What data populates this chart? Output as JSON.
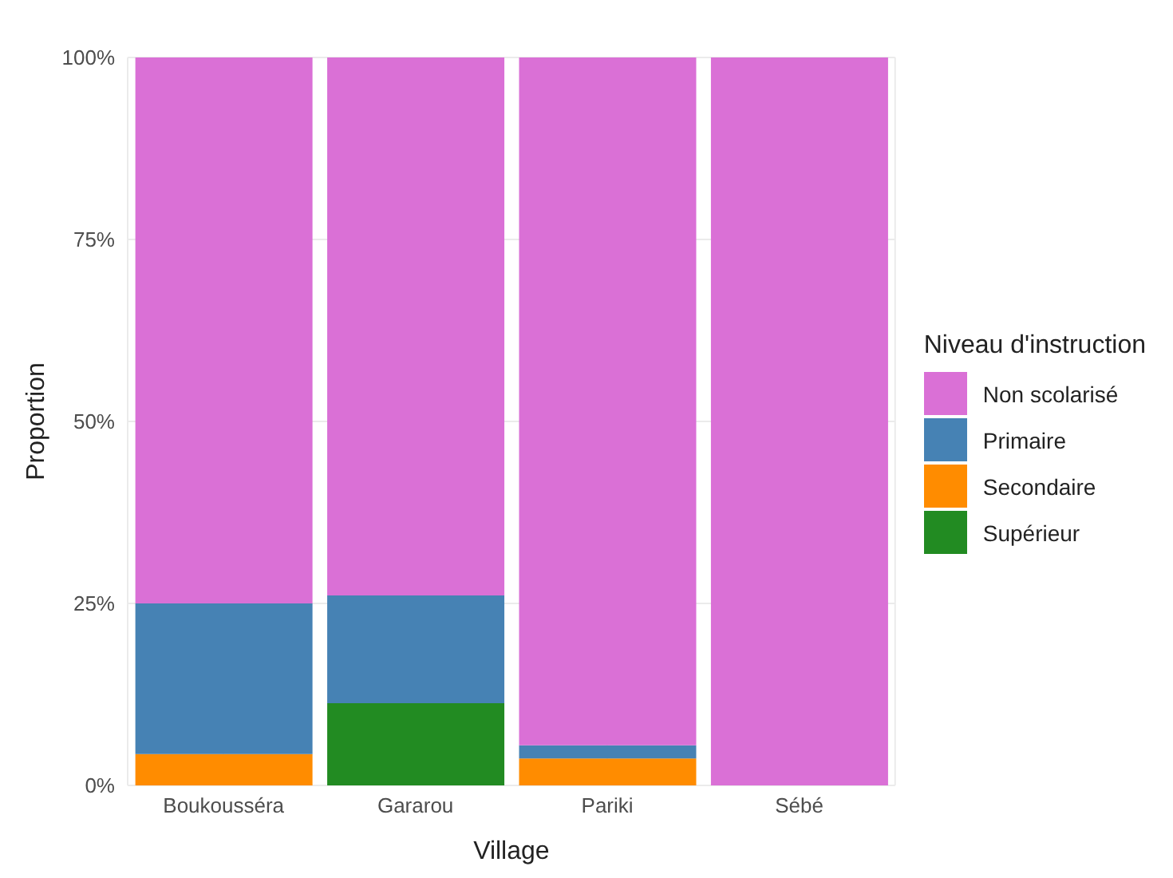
{
  "chart_data": {
    "type": "bar",
    "stacked": true,
    "xlabel": "Village",
    "ylabel": "Proportion",
    "legend_title": "Niveau d'instruction",
    "legend": "right",
    "grid": true,
    "categories": [
      "Boukousséra",
      "Gararou",
      "Pariki",
      "Sébé"
    ],
    "series": [
      {
        "name": "Supérieur",
        "color": "#228b22",
        "values": [
          0,
          11.3,
          0,
          0
        ]
      },
      {
        "name": "Secondaire",
        "color": "#ff8c00",
        "values": [
          4.3,
          0,
          3.7,
          0
        ]
      },
      {
        "name": "Primaire",
        "color": "#4682b4",
        "values": [
          20.7,
          14.8,
          1.8,
          0
        ]
      },
      {
        "name": "Non scolarisé",
        "color": "#da70d6",
        "values": [
          75,
          73.9,
          94.5,
          100
        ]
      }
    ],
    "ylim": [
      0,
      100
    ],
    "yticks": [
      {
        "value": 0,
        "label": "0%"
      },
      {
        "value": 25,
        "label": "25%"
      },
      {
        "value": 50,
        "label": "50%"
      },
      {
        "value": 75,
        "label": "75%"
      },
      {
        "value": 100,
        "label": "100%"
      }
    ]
  }
}
